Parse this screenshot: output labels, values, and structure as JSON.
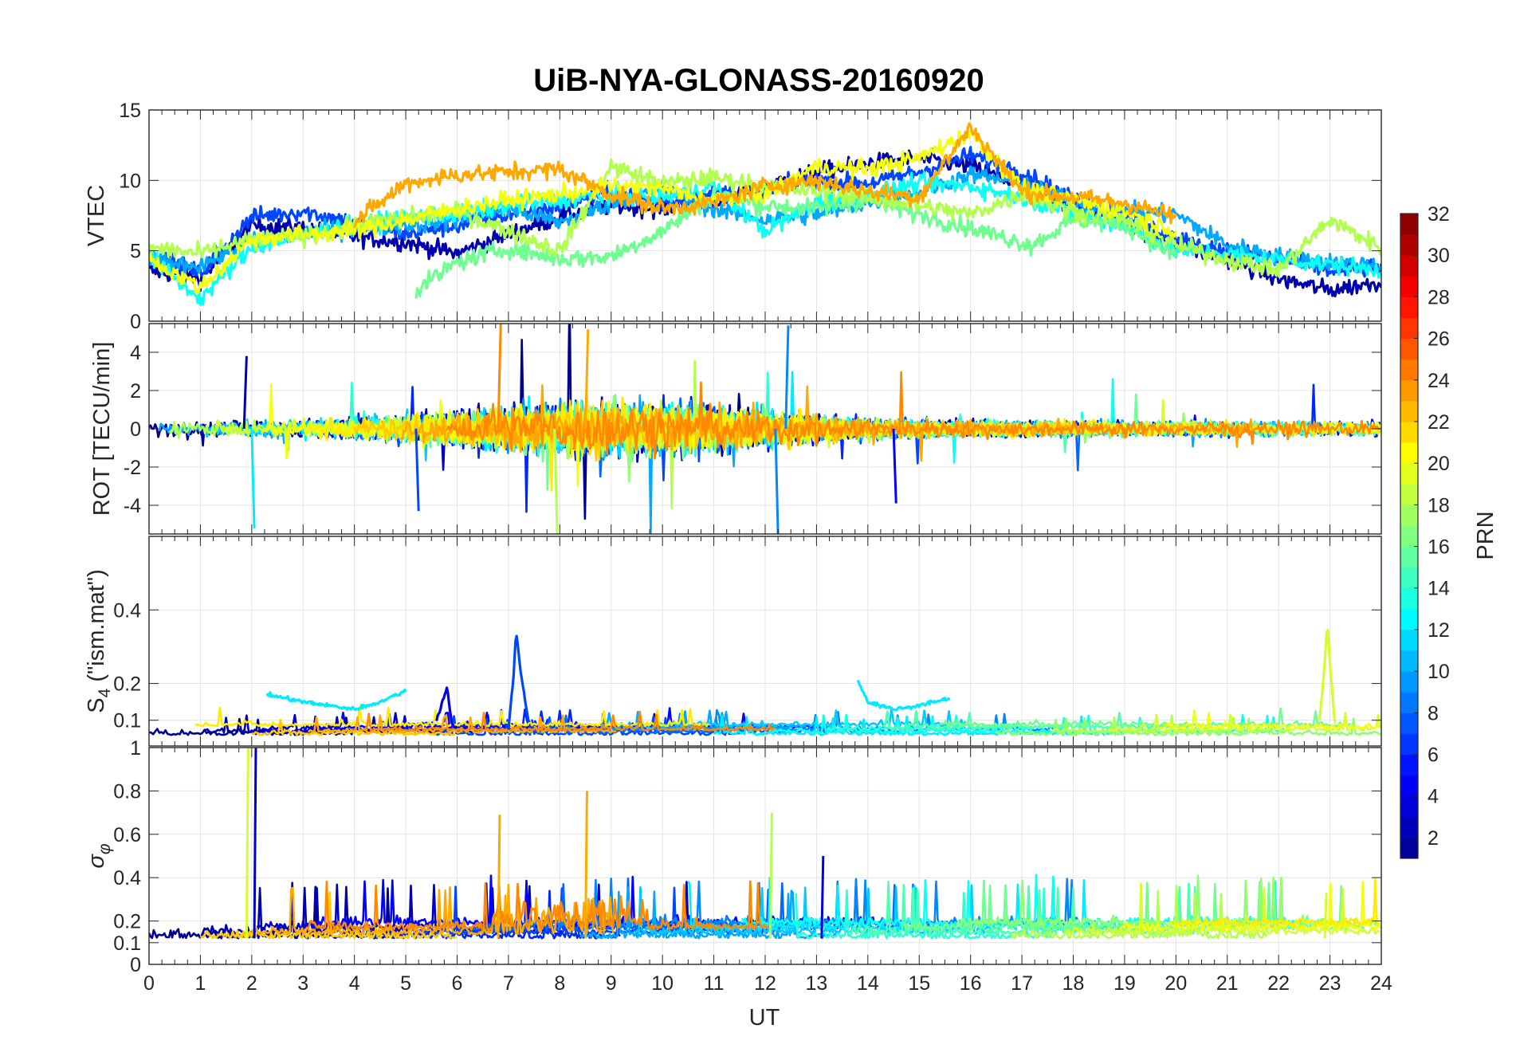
{
  "chart_data": {
    "type": "line",
    "title": "UiB-NYA-GLONASS-20160920",
    "xlabel": "UT",
    "xlim": [
      0,
      24
    ],
    "x_ticks": [
      "0",
      "1",
      "2",
      "3",
      "4",
      "5",
      "6",
      "7",
      "8",
      "9",
      "10",
      "11",
      "12",
      "13",
      "14",
      "15",
      "16",
      "17",
      "18",
      "19",
      "20",
      "21",
      "22",
      "23",
      "24"
    ],
    "grid": true,
    "panels": [
      {
        "ylabel": "VTEC",
        "ylim": [
          0,
          15
        ],
        "y_ticks": [
          "0",
          "5",
          "10",
          "15"
        ],
        "series": [
          {
            "prn": 2,
            "x": [
              0,
              1,
              2,
              3,
              4,
              5,
              6,
              7,
              8,
              9,
              10,
              11,
              12,
              13,
              14,
              15,
              16,
              17,
              18,
              19,
              20,
              21,
              22,
              23,
              24
            ],
            "y": [
              3.6,
              3.0,
              6.8,
              6.6,
              6.0,
              5.6,
              4.8,
              6.2,
              7.4,
              8.2,
              8.0,
              8.6,
              9.6,
              10.6,
              11.2,
              11.6,
              11.0,
              9.6,
              8.2,
              7.0,
              5.4,
              4.4,
              3.0,
              2.2,
              2.8
            ]
          },
          {
            "prn": 7,
            "x": [
              0,
              1,
              2,
              3,
              4,
              5,
              6,
              7,
              8,
              9,
              10,
              11,
              12,
              13,
              14,
              15,
              16,
              17,
              18,
              19,
              20,
              21,
              22,
              23,
              24
            ],
            "y": [
              4.8,
              3.4,
              7.4,
              7.8,
              7.0,
              6.2,
              6.8,
              7.6,
              8.2,
              9.2,
              8.4,
              9.0,
              9.4,
              10.0,
              9.8,
              10.6,
              11.8,
              10.6,
              8.6,
              7.6,
              5.8,
              5.0,
              4.4,
              3.6,
              3.8
            ]
          },
          {
            "prn": 10,
            "x": [
              0,
              1,
              2,
              3,
              4,
              5,
              6,
              7,
              8,
              9,
              10,
              11,
              12,
              13,
              14,
              15,
              16,
              17,
              18,
              19,
              20,
              21,
              22,
              23,
              24
            ],
            "y": [
              4.2,
              4.0,
              5.6,
              6.2,
              6.6,
              6.8,
              7.2,
              8.0,
              7.0,
              8.4,
              9.4,
              8.0,
              7.2,
              7.6,
              8.4,
              9.2,
              10.4,
              9.8,
              8.4,
              7.8,
              7.6,
              5.4,
              4.6,
              4.2,
              4.0
            ]
          },
          {
            "prn": 13,
            "x": [
              0,
              1,
              2,
              3,
              4,
              5,
              6,
              7,
              8,
              9,
              10,
              11,
              12,
              13,
              14,
              15,
              16,
              17,
              18,
              19,
              20,
              21,
              22,
              23,
              24
            ],
            "y": [
              4.6,
              1.6,
              5.2,
              6.2,
              6.8,
              7.4,
              7.6,
              8.2,
              8.6,
              9.0,
              8.8,
              9.6,
              6.4,
              8.4,
              9.0,
              9.8,
              9.6,
              8.8,
              7.6,
              6.8,
              5.0,
              4.8,
              4.4,
              4.0,
              3.6
            ]
          },
          {
            "prn": 16,
            "x": [
              5.2,
              6,
              7,
              8,
              9,
              10,
              11,
              12,
              13,
              14,
              17.2,
              18,
              19,
              20
            ],
            "y": [
              2.2,
              4.2,
              5.2,
              4.4,
              4.6,
              6.4,
              9.0,
              8.2,
              8.0,
              8.6,
              5.4,
              7.2,
              6.8,
              4.6
            ]
          },
          {
            "prn": 18,
            "x": [
              0,
              1,
              2,
              3,
              4,
              5,
              6,
              7,
              8,
              9,
              10,
              11,
              12,
              13,
              14,
              15,
              16,
              17,
              18,
              19,
              20,
              21,
              22,
              23,
              24
            ],
            "y": [
              5.2,
              4.8,
              5.8,
              6.0,
              6.8,
              7.4,
              7.8,
              6.4,
              5.0,
              11.0,
              9.8,
              10.2,
              9.6,
              9.2,
              8.8,
              8.2,
              7.6,
              9.0,
              7.8,
              7.2,
              5.4,
              4.4,
              3.6,
              7.2,
              5.2
            ]
          },
          {
            "prn": 20,
            "x": [
              0,
              1,
              2,
              3,
              4,
              5,
              6,
              7,
              8,
              9,
              10,
              11,
              12,
              13,
              14,
              15,
              16,
              17,
              18,
              19,
              20
            ],
            "y": [
              4.4,
              2.4,
              5.8,
              6.2,
              6.4,
              7.2,
              8.0,
              8.6,
              9.0,
              9.6,
              9.4,
              8.6,
              9.0,
              11.0,
              10.8,
              11.6,
              13.4,
              9.4,
              8.6,
              7.8,
              6.4
            ]
          },
          {
            "prn": 23,
            "x": [
              4,
              5,
              6,
              7,
              8,
              9,
              10,
              11,
              12,
              13,
              14,
              15,
              16,
              17,
              18,
              19,
              20
            ],
            "y": [
              7.0,
              9.8,
              10.4,
              10.6,
              10.8,
              9.0,
              8.0,
              8.4,
              9.6,
              10.0,
              9.2,
              8.8,
              13.8,
              9.2,
              8.8,
              8.4,
              7.4
            ]
          }
        ]
      },
      {
        "ylabel": "ROT [TECU/min]",
        "ylim": [
          -5.5,
          5.5
        ],
        "y_ticks": [
          "-4",
          "-2",
          "0",
          "2",
          "4"
        ]
      },
      {
        "ylabel": "S4 (\"ism.mat\")",
        "ylabel_main": "S",
        "ylabel_sub": "4",
        "ylabel_rest": " (\"ism.mat\")",
        "ylim": [
          0.03,
          0.6
        ],
        "y_ticks": [
          "0.1",
          "0.2",
          "0.4"
        ],
        "series": [
          {
            "prn": 4,
            "x": [
              5.6,
              5.8,
              5.9,
              6.0
            ],
            "y": [
              0.1,
              0.19,
              0.09,
              0.08
            ]
          },
          {
            "prn": 7,
            "x": [
              7.0,
              7.1,
              7.15,
              7.25,
              7.4
            ],
            "y": [
              0.08,
              0.22,
              0.34,
              0.22,
              0.09
            ]
          },
          {
            "prn": 12,
            "x": [
              2.3,
              3.0,
              4.0,
              4.5,
              5.0
            ],
            "y": [
              0.17,
              0.15,
              0.13,
              0.15,
              0.18
            ]
          },
          {
            "prn": 12,
            "x": [
              13.8,
              14.0,
              14.5,
              15.0,
              15.6
            ],
            "y": [
              0.21,
              0.15,
              0.13,
              0.14,
              0.16
            ]
          },
          {
            "prn": 19,
            "x": [
              22.8,
              22.9,
              22.95,
              23.0,
              23.1
            ],
            "y": [
              0.1,
              0.26,
              0.37,
              0.25,
              0.09
            ]
          }
        ]
      },
      {
        "ylabel": "σφ",
        "ylabel_main": "σ",
        "ylabel_sub": "φ",
        "ylim": [
          0,
          1
        ],
        "y_ticks": [
          "0",
          "0.1",
          "0.2",
          "0.4",
          "0.6",
          "0.8",
          "1"
        ]
      }
    ],
    "colorbar": {
      "label": "PRN",
      "range": [
        1,
        32
      ],
      "ticks": [
        "2",
        "4",
        "6",
        "8",
        "10",
        "12",
        "14",
        "16",
        "18",
        "20",
        "22",
        "24",
        "26",
        "28",
        "30",
        "32"
      ],
      "colormap": "jet",
      "colors": [
        "#00008f",
        "#0000ff",
        "#0080ff",
        "#00ffff",
        "#80ff80",
        "#ffff00",
        "#ff8000",
        "#ff0000",
        "#800000"
      ]
    }
  }
}
